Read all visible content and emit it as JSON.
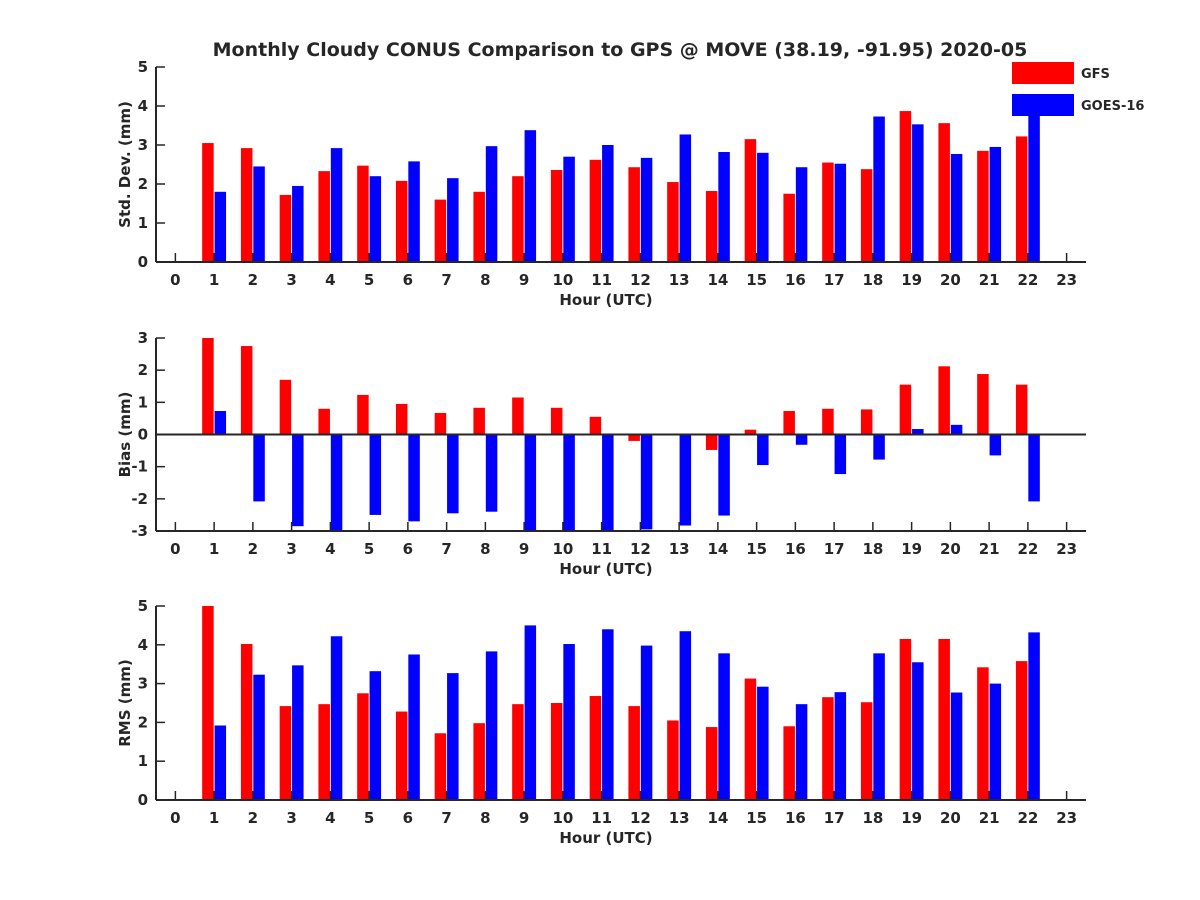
{
  "figure": {
    "title": "Monthly Cloudy CONUS Comparison to GPS @ MOVE (38.19, -91.95) 2020-05",
    "background": "#ffffff",
    "axis_color": "#262626"
  },
  "legend": {
    "placement": "top-right, outside the top panel",
    "items": [
      {
        "label": "GFS",
        "color": "#ff0000"
      },
      {
        "label": "GOES-16",
        "color": "#0000ff"
      }
    ]
  },
  "chart_data": [
    {
      "type": "bar",
      "xlabel": "Hour (UTC)",
      "ylabel": "Std. Dev. (mm)",
      "xlim": [
        -0.5,
        23.5
      ],
      "ylim": [
        0,
        5
      ],
      "yticks": [
        0,
        1,
        2,
        3,
        4,
        5
      ],
      "categories": [
        "0",
        "1",
        "2",
        "3",
        "4",
        "5",
        "6",
        "7",
        "8",
        "9",
        "10",
        "11",
        "12",
        "13",
        "14",
        "15",
        "16",
        "17",
        "18",
        "19",
        "20",
        "21",
        "22",
        "23"
      ],
      "grid": false,
      "series": [
        {
          "name": "GFS",
          "color": "#ff0000",
          "values": [
            null,
            3.05,
            2.92,
            1.72,
            2.33,
            2.47,
            2.08,
            1.6,
            1.8,
            2.2,
            2.36,
            2.62,
            2.43,
            2.05,
            1.82,
            3.15,
            1.75,
            2.55,
            2.38,
            3.87,
            3.56,
            2.85,
            3.22,
            null
          ]
        },
        {
          "name": "GOES-16",
          "color": "#0000ff",
          "values": [
            null,
            1.8,
            2.45,
            1.95,
            2.92,
            2.2,
            2.58,
            2.15,
            2.97,
            3.38,
            2.7,
            3.0,
            2.67,
            3.27,
            2.82,
            2.8,
            2.43,
            2.52,
            3.73,
            3.53,
            2.77,
            2.95,
            3.78,
            null
          ]
        }
      ]
    },
    {
      "type": "bar",
      "xlabel": "Hour (UTC)",
      "ylabel": "Bias (mm)",
      "xlim": [
        -0.5,
        23.5
      ],
      "ylim": [
        -3,
        3
      ],
      "yticks": [
        -3,
        -2,
        -1,
        0,
        1,
        2,
        3
      ],
      "categories": [
        "0",
        "1",
        "2",
        "3",
        "4",
        "5",
        "6",
        "7",
        "8",
        "9",
        "10",
        "11",
        "12",
        "13",
        "14",
        "15",
        "16",
        "17",
        "18",
        "19",
        "20",
        "21",
        "22",
        "23"
      ],
      "grid": false,
      "series": [
        {
          "name": "GFS",
          "color": "#ff0000",
          "values": [
            null,
            3.0,
            2.75,
            1.7,
            0.8,
            1.23,
            0.95,
            0.67,
            0.83,
            1.15,
            0.83,
            0.55,
            -0.2,
            -0.02,
            -0.48,
            0.15,
            0.73,
            0.8,
            0.78,
            1.55,
            2.12,
            1.88,
            1.55,
            null
          ]
        },
        {
          "name": "GOES-16",
          "color": "#0000ff",
          "values": [
            null,
            0.73,
            -2.08,
            -2.85,
            -3.0,
            -2.5,
            -2.7,
            -2.45,
            -2.4,
            -3.0,
            -2.98,
            -3.0,
            -2.95,
            -2.83,
            -2.52,
            -0.95,
            -0.32,
            -1.23,
            -0.78,
            0.17,
            0.3,
            -0.65,
            -2.08,
            null
          ]
        }
      ]
    },
    {
      "type": "bar",
      "xlabel": "Hour (UTC)",
      "ylabel": "RMS (mm)",
      "xlim": [
        -0.5,
        23.5
      ],
      "ylim": [
        0,
        5
      ],
      "yticks": [
        0,
        1,
        2,
        3,
        4,
        5
      ],
      "categories": [
        "0",
        "1",
        "2",
        "3",
        "4",
        "5",
        "6",
        "7",
        "8",
        "9",
        "10",
        "11",
        "12",
        "13",
        "14",
        "15",
        "16",
        "17",
        "18",
        "19",
        "20",
        "21",
        "22",
        "23"
      ],
      "grid": false,
      "series": [
        {
          "name": "GFS",
          "color": "#ff0000",
          "values": [
            null,
            5.0,
            4.02,
            2.42,
            2.47,
            2.75,
            2.28,
            1.72,
            1.98,
            2.47,
            2.5,
            2.68,
            2.42,
            2.05,
            1.88,
            3.13,
            1.9,
            2.65,
            2.52,
            4.15,
            4.15,
            3.42,
            3.58,
            null
          ]
        },
        {
          "name": "GOES-16",
          "color": "#0000ff",
          "values": [
            null,
            1.92,
            3.23,
            3.47,
            4.22,
            3.32,
            3.75,
            3.27,
            3.83,
            4.5,
            4.02,
            4.4,
            3.98,
            4.35,
            3.78,
            2.92,
            2.47,
            2.78,
            3.78,
            3.55,
            2.77,
            3.0,
            4.32,
            null
          ]
        }
      ]
    }
  ]
}
